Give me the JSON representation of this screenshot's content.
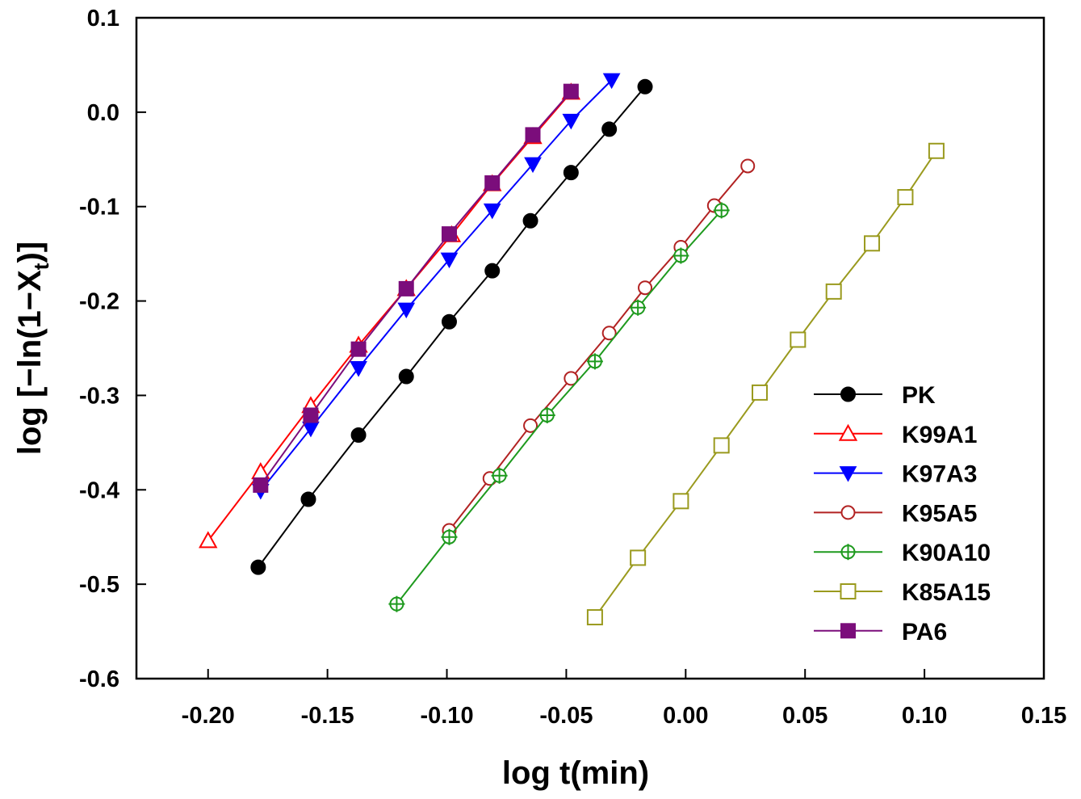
{
  "chart_data": {
    "type": "line",
    "title": "",
    "xlabel": "log t(min)",
    "ylabel_main": "log [−ln(1−X",
    "ylabel_sub": "t",
    "ylabel_end": ")]",
    "xlim": [
      -0.23,
      0.15
    ],
    "ylim": [
      -0.6,
      0.1
    ],
    "xticks": [
      -0.2,
      -0.15,
      -0.1,
      -0.05,
      0.0,
      0.05,
      0.1,
      0.15
    ],
    "xtick_labels": [
      "-0.20",
      "-0.15",
      "-0.10",
      "-0.05",
      "0.00",
      "0.05",
      "0.10",
      "0.15"
    ],
    "yticks": [
      0.1,
      0.0,
      -0.1,
      -0.2,
      -0.3,
      -0.4,
      -0.5,
      -0.6
    ],
    "ytick_labels": [
      "0.1",
      "0.0",
      "-0.1",
      "-0.2",
      "-0.3",
      "-0.4",
      "-0.5",
      "-0.6"
    ],
    "grid": false,
    "legend_position": "bottom-right",
    "series": [
      {
        "name": "PK",
        "color": "#000000",
        "marker": "circle-filled",
        "x": [
          -0.179,
          -0.158,
          -0.137,
          -0.117,
          -0.099,
          -0.081,
          -0.065,
          -0.048,
          -0.032,
          -0.017
        ],
        "y": [
          -0.482,
          -0.41,
          -0.342,
          -0.28,
          -0.222,
          -0.168,
          -0.115,
          -0.064,
          -0.018,
          0.027
        ]
      },
      {
        "name": "K99A1",
        "color": "#ff0000",
        "marker": "triangle-up-open",
        "x": [
          -0.2,
          -0.178,
          -0.157,
          -0.137,
          -0.117,
          -0.098,
          -0.064,
          -0.081,
          -0.048
        ],
        "y": [
          -0.454,
          -0.381,
          -0.311,
          -0.247,
          -0.187,
          -0.13,
          -0.026,
          -0.076,
          0.021
        ]
      },
      {
        "name": "K97A3",
        "color": "#0000ff",
        "marker": "triangle-down-filled",
        "x": [
          -0.178,
          -0.157,
          -0.137,
          -0.117,
          -0.099,
          -0.081,
          -0.064,
          -0.048,
          -0.031
        ],
        "y": [
          -0.401,
          -0.335,
          -0.271,
          -0.209,
          -0.156,
          -0.104,
          -0.055,
          -0.009,
          0.034
        ]
      },
      {
        "name": "K95A5",
        "color": "#b22222",
        "marker": "circle-open",
        "x": [
          -0.099,
          -0.082,
          -0.065,
          -0.048,
          -0.032,
          -0.017,
          -0.002,
          0.012,
          0.026
        ],
        "y": [
          -0.443,
          -0.388,
          -0.332,
          -0.282,
          -0.234,
          -0.186,
          -0.143,
          -0.099,
          -0.057
        ]
      },
      {
        "name": "K90A10",
        "color": "#1e9a1e",
        "marker": "circle-cross-open",
        "x": [
          -0.121,
          -0.099,
          -0.078,
          -0.058,
          -0.038,
          -0.02,
          -0.002,
          0.015
        ],
        "y": [
          -0.521,
          -0.45,
          -0.385,
          -0.321,
          -0.264,
          -0.207,
          -0.152,
          -0.104
        ]
      },
      {
        "name": "K85A15",
        "color": "#9a9a1e",
        "marker": "square-open",
        "x": [
          -0.038,
          -0.02,
          -0.002,
          0.015,
          0.031,
          0.047,
          0.062,
          0.078,
          0.092,
          0.105
        ],
        "y": [
          -0.535,
          -0.472,
          -0.412,
          -0.353,
          -0.297,
          -0.241,
          -0.19,
          -0.139,
          -0.09,
          -0.041
        ]
      },
      {
        "name": "PA6",
        "color": "#7b0d7b",
        "marker": "square-filled",
        "x": [
          -0.178,
          -0.157,
          -0.137,
          -0.117,
          -0.099,
          -0.081,
          -0.064,
          -0.048
        ],
        "y": [
          -0.395,
          -0.321,
          -0.251,
          -0.187,
          -0.129,
          -0.075,
          -0.024,
          0.022
        ]
      }
    ]
  }
}
